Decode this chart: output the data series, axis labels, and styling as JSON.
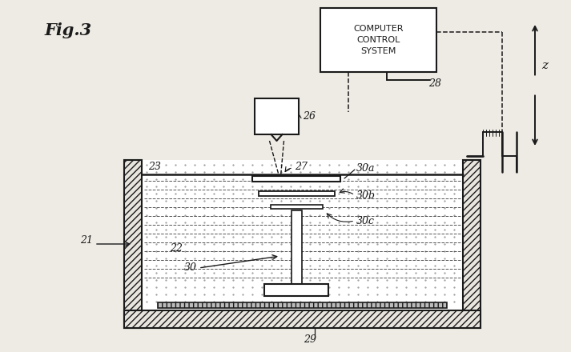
{
  "bg_color": "#eeebe4",
  "line_color": "#1a1a1a",
  "labels": {
    "fig": "Fig.3",
    "computer_box": "COMPUTER\nCONTROL\nSYSTEM",
    "n28": "28",
    "n26": "26",
    "n27": "27",
    "n23": "23",
    "n21": "21",
    "n22": "22",
    "n30": "30",
    "n30a": "30a",
    "n30b": "30b",
    "n30c": "30c",
    "n29": "29",
    "z_label": "z"
  }
}
